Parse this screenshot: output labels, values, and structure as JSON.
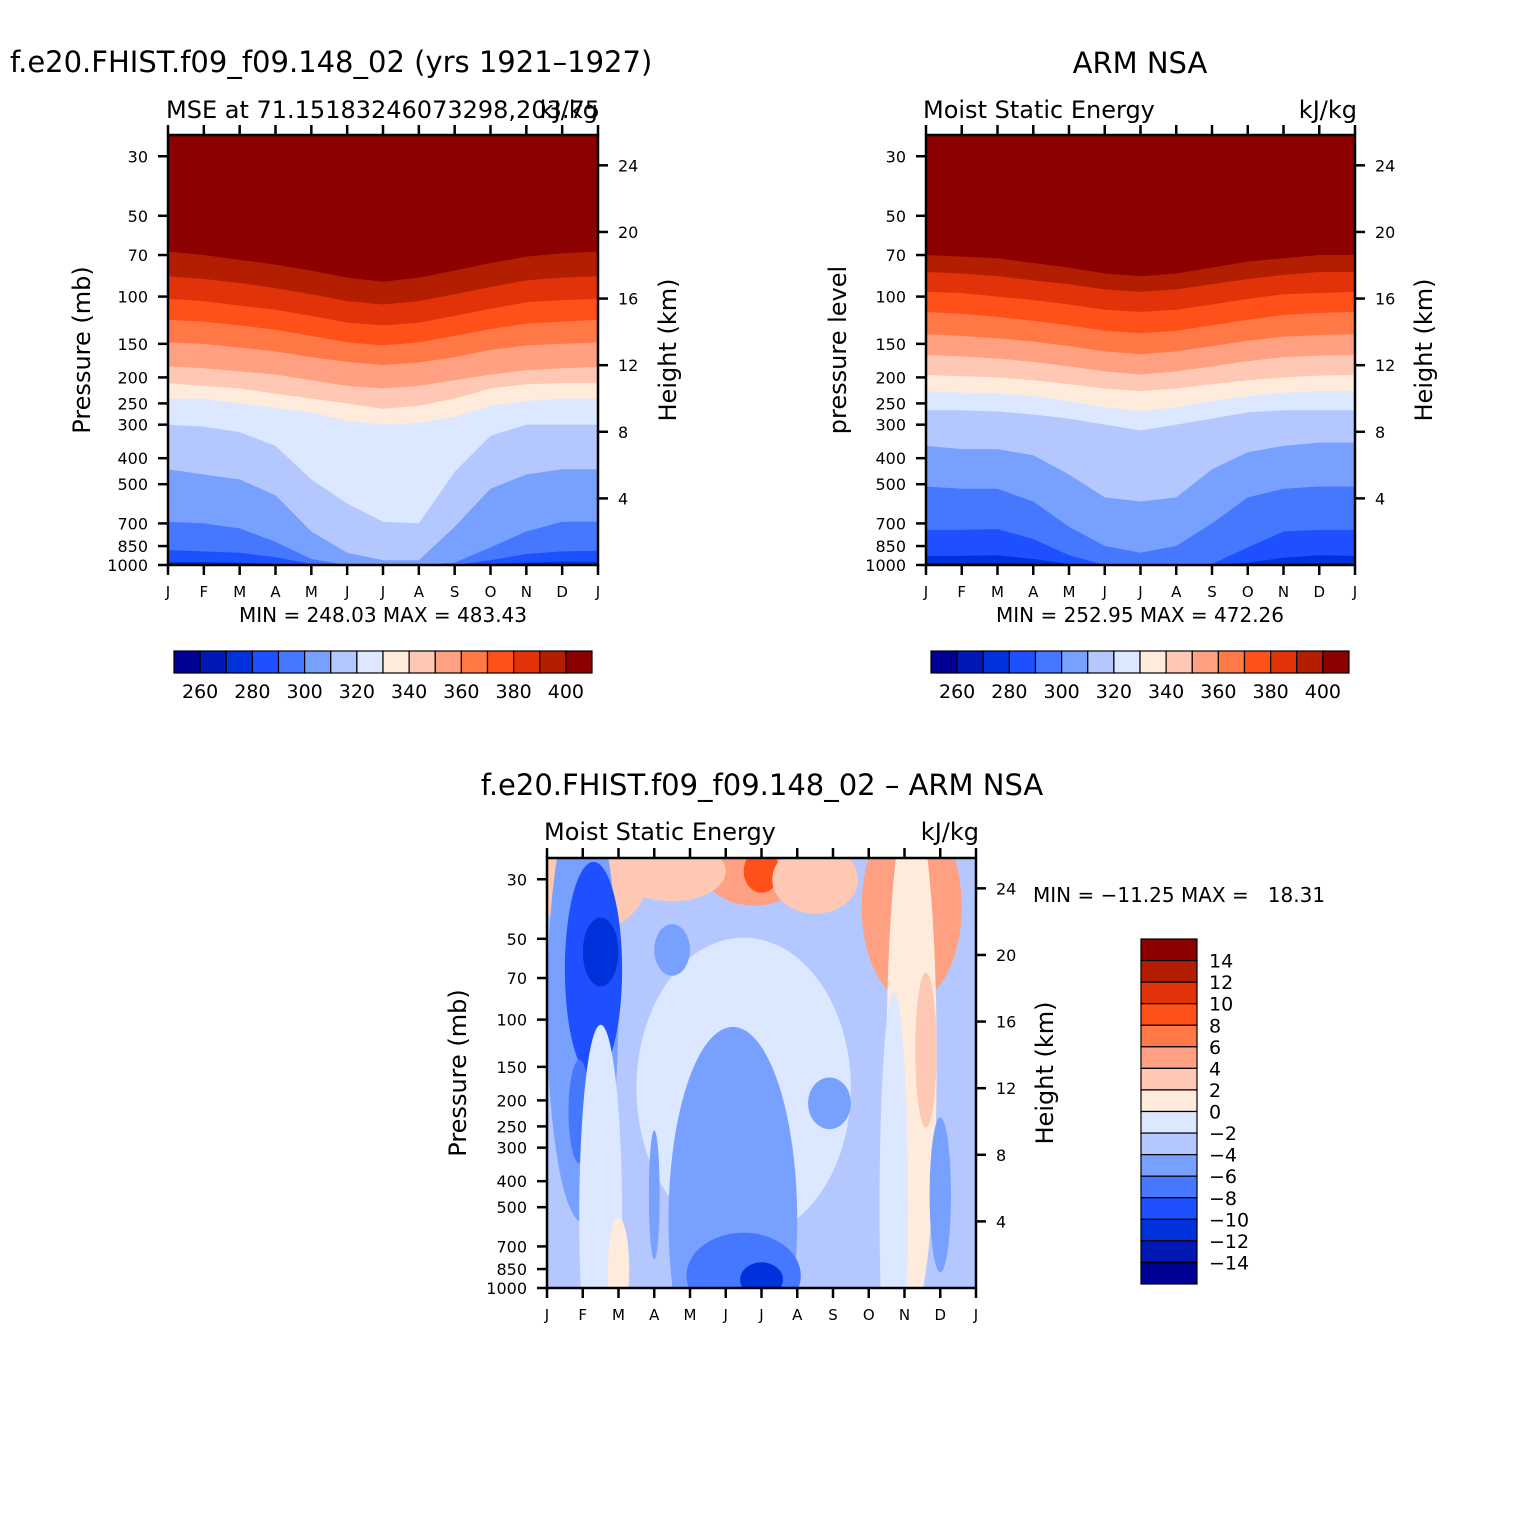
{
  "colors": {
    "mse_levels": [
      "#000096",
      "#0019b4",
      "#0032dc",
      "#1e50ff",
      "#4678ff",
      "#78a0ff",
      "#b4c8ff",
      "#dce8ff",
      "#ffebdc",
      "#ffc8b4",
      "#ffa082",
      "#ff7846",
      "#ff5019",
      "#e1320a",
      "#b41e00",
      "#8c0000"
    ],
    "diff_levels": [
      "#000096",
      "#0019b4",
      "#0032dc",
      "#1e50ff",
      "#4678ff",
      "#78a0ff",
      "#b4c8ff",
      "#dce8ff",
      "#ffebdc",
      "#ffc8b4",
      "#ffa082",
      "#ff7846",
      "#ff5019",
      "#e1320a",
      "#b41e00",
      "#8c0000"
    ]
  },
  "chart_data": [
    {
      "type": "heatmap",
      "panel": "model",
      "title": "f.e20.FHIST.f09_f09.148_02 (yrs 1921–1927)",
      "subtitle_left": "MSE at 71.15183246073298,203.75",
      "subtitle_right": "kJ/kg",
      "ylabel": "Pressure (mb)",
      "ylabel_right": "Height (km)",
      "x_ticks": [
        "J",
        "F",
        "M",
        "A",
        "M",
        "J",
        "J",
        "A",
        "S",
        "O",
        "N",
        "D",
        "J"
      ],
      "y_ticks": [
        "30",
        "50",
        "70",
        "100",
        "150",
        "200",
        "250",
        "300",
        "400",
        "500",
        "700",
        "850",
        "1000"
      ],
      "y_ticks_right": [
        "24",
        "20",
        "16",
        "12",
        "8",
        "4"
      ],
      "minmax": "MIN = 248.03 MAX = 483.43",
      "min": 248.03,
      "max": 483.43,
      "colorbar_labels": [
        "260",
        "280",
        "300",
        "320",
        "340",
        "360",
        "380",
        "400"
      ],
      "months": [
        0,
        1,
        2,
        3,
        4,
        5,
        6,
        7,
        8,
        9,
        10,
        11,
        12
      ],
      "boundary_pressures_mb": [
        [
          990,
          992,
          995,
          1000,
          1000,
          1000,
          1000,
          1000,
          1000,
          1000,
          1000,
          1000,
          1000
        ],
        [
          975,
          975,
          980,
          990,
          1000,
          1000,
          1000,
          1000,
          1000,
          990,
          980,
          970,
          972
        ],
        [
          880,
          890,
          900,
          935,
          990,
          1000,
          1000,
          1000,
          1000,
          960,
          910,
          890,
          885
        ],
        [
          690,
          700,
          730,
          820,
          950,
          1000,
          1000,
          1000,
          980,
          860,
          750,
          690,
          690
        ],
        [
          440,
          460,
          480,
          550,
          750,
          900,
          960,
          960,
          720,
          520,
          460,
          440,
          440
        ],
        [
          300,
          305,
          320,
          360,
          480,
          590,
          690,
          700,
          450,
          330,
          300,
          300,
          300
        ],
        [
          240,
          240,
          250,
          260,
          270,
          290,
          300,
          295,
          280,
          255,
          245,
          240,
          240
        ],
        [
          210,
          215,
          220,
          230,
          240,
          250,
          262,
          255,
          240,
          220,
          212,
          210,
          210
        ],
        [
          182,
          185,
          190,
          195,
          205,
          215,
          220,
          215,
          205,
          195,
          188,
          185,
          183
        ],
        [
          148,
          150,
          155,
          160,
          168,
          175,
          180,
          176,
          168,
          158,
          152,
          150,
          148
        ],
        [
          122,
          124,
          128,
          133,
          140,
          148,
          152,
          148,
          140,
          132,
          126,
          124,
          122
        ],
        [
          102,
          104,
          108,
          112,
          118,
          125,
          128,
          125,
          118,
          111,
          105,
          103,
          102
        ],
        [
          84,
          86,
          89,
          93,
          98,
          104,
          107,
          104,
          98,
          92,
          87,
          85,
          84
        ],
        [
          68,
          70,
          73,
          76,
          80,
          85,
          88,
          85,
          80,
          75,
          71,
          69,
          68
        ]
      ]
    },
    {
      "type": "heatmap",
      "panel": "observed",
      "title": "ARM NSA",
      "subtitle_left": "Moist Static Energy",
      "subtitle_right": "kJ/kg",
      "ylabel": "pressure level",
      "ylabel_right": "Height (km)",
      "x_ticks": [
        "J",
        "F",
        "M",
        "A",
        "M",
        "J",
        "J",
        "A",
        "S",
        "O",
        "N",
        "D",
        "J"
      ],
      "y_ticks": [
        "30",
        "50",
        "70",
        "100",
        "150",
        "200",
        "250",
        "300",
        "400",
        "500",
        "700",
        "850",
        "1000"
      ],
      "y_ticks_right": [
        "24",
        "20",
        "16",
        "12",
        "8",
        "4"
      ],
      "minmax": "MIN = 252.95 MAX = 472.26",
      "min": 252.95,
      "max": 472.26,
      "colorbar_labels": [
        "260",
        "280",
        "300",
        "320",
        "340",
        "360",
        "380",
        "400"
      ],
      "months": [
        0,
        1,
        2,
        3,
        4,
        5,
        6,
        7,
        8,
        9,
        10,
        11,
        12
      ],
      "boundary_pressures_mb": [
        [
          985,
          985,
          985,
          990,
          1000,
          1000,
          1000,
          1000,
          1000,
          1000,
          990,
          985,
          985
        ],
        [
          925,
          925,
          920,
          950,
          990,
          1000,
          1000,
          1000,
          1000,
          980,
          940,
          920,
          925
        ],
        [
          740,
          740,
          735,
          800,
          920,
          1000,
          1000,
          1000,
          990,
          860,
          750,
          740,
          740
        ],
        [
          510,
          520,
          520,
          580,
          720,
          850,
          900,
          850,
          700,
          560,
          520,
          510,
          510
        ],
        [
          360,
          370,
          370,
          390,
          460,
          560,
          580,
          560,
          440,
          380,
          360,
          350,
          350
        ],
        [
          265,
          265,
          268,
          275,
          285,
          300,
          315,
          300,
          285,
          270,
          265,
          265,
          265
        ],
        [
          225,
          228,
          230,
          235,
          245,
          258,
          268,
          258,
          245,
          235,
          228,
          225,
          225
        ],
        [
          196,
          198,
          200,
          205,
          212,
          220,
          225,
          220,
          212,
          205,
          200,
          197,
          196
        ],
        [
          165,
          167,
          170,
          175,
          182,
          190,
          195,
          190,
          182,
          174,
          168,
          166,
          165
        ],
        [
          138,
          140,
          143,
          147,
          153,
          160,
          164,
          160,
          153,
          146,
          141,
          139,
          138
        ],
        [
          114,
          116,
          119,
          123,
          128,
          134,
          137,
          134,
          128,
          122,
          117,
          115,
          114
        ],
        [
          96,
          97,
          100,
          103,
          107,
          112,
          114,
          112,
          107,
          102,
          98,
          97,
          96
        ],
        [
          81,
          82,
          84,
          87,
          90,
          94,
          96,
          94,
          90,
          86,
          83,
          81,
          81
        ],
        [
          70,
          71,
          72,
          75,
          78,
          82,
          84,
          82,
          78,
          74,
          72,
          70,
          70
        ]
      ]
    },
    {
      "type": "heatmap",
      "panel": "difference",
      "title": "f.e20.FHIST.f09_f09.148_02 – ARM NSA",
      "subtitle_left": "Moist Static Energy",
      "subtitle_right": "kJ/kg",
      "ylabel": "Pressure (mb)",
      "ylabel_right": "Height (km)",
      "x_ticks": [
        "J",
        "F",
        "M",
        "A",
        "M",
        "J",
        "J",
        "A",
        "S",
        "O",
        "N",
        "D",
        "J"
      ],
      "y_ticks": [
        "30",
        "50",
        "70",
        "100",
        "150",
        "200",
        "250",
        "300",
        "400",
        "500",
        "700",
        "850",
        "1000"
      ],
      "y_ticks_right": [
        "24",
        "20",
        "16",
        "12",
        "8",
        "4"
      ],
      "minmax": "MIN = −11.25 MAX =   18.31",
      "min": -11.25,
      "max": 18.31,
      "colorbar_labels": [
        "14",
        "12",
        "10",
        "8",
        "6",
        "4",
        "2",
        "0",
        "−2",
        "−4",
        "−6",
        "−8",
        "−10",
        "−12",
        "−14"
      ],
      "colorbar_values": [
        14,
        12,
        10,
        8,
        6,
        4,
        2,
        0,
        -2,
        -4,
        -6,
        -8,
        -10,
        -12,
        -14
      ],
      "background_value": -3,
      "blobs": [
        {
          "value": 3,
          "month": 1.2,
          "p": 30,
          "rx": 1.6,
          "ry": 0.12
        },
        {
          "value": 5,
          "month": 5.8,
          "p": 28,
          "rx": 1.4,
          "ry": 0.08
        },
        {
          "value": 9,
          "month": 6.0,
          "p": 28,
          "rx": 0.5,
          "ry": 0.05
        },
        {
          "value": 3,
          "month": 3.5,
          "p": 28,
          "rx": 1.5,
          "ry": 0.07
        },
        {
          "value": 3,
          "month": 7.5,
          "p": 30,
          "rx": 1.2,
          "ry": 0.08
        },
        {
          "value": 16,
          "month": 10.0,
          "p": 27,
          "rx": 0.7,
          "ry": 0.1
        },
        {
          "value": 10,
          "month": 10.0,
          "p": 32,
          "rx": 1.0,
          "ry": 0.16
        },
        {
          "value": 5,
          "month": 10.2,
          "p": 38,
          "rx": 1.4,
          "ry": 0.22
        },
        {
          "value": 1,
          "month": 10.2,
          "p": 140,
          "rx": 0.7,
          "ry": 0.6
        },
        {
          "value": 3,
          "month": 10.6,
          "p": 130,
          "rx": 0.3,
          "ry": 0.18
        },
        {
          "value": -6,
          "month": 1.0,
          "p": 90,
          "rx": 1.0,
          "ry": 0.5
        },
        {
          "value": -9,
          "month": 1.3,
          "p": 65,
          "rx": 0.8,
          "ry": 0.25
        },
        {
          "value": -12,
          "month": 1.5,
          "p": 56,
          "rx": 0.5,
          "ry": 0.08
        },
        {
          "value": -7,
          "month": 0.9,
          "p": 220,
          "rx": 0.3,
          "ry": 0.12
        },
        {
          "value": -1,
          "month": 5.5,
          "p": 180,
          "rx": 3.0,
          "ry": 0.35
        },
        {
          "value": -5,
          "month": 7.9,
          "p": 205,
          "rx": 0.6,
          "ry": 0.06
        },
        {
          "value": -5,
          "month": 5.2,
          "p": 560,
          "rx": 1.8,
          "ry": 0.45
        },
        {
          "value": -8,
          "month": 5.5,
          "p": 900,
          "rx": 1.6,
          "ry": 0.1
        },
        {
          "value": -11,
          "month": 6.0,
          "p": 930,
          "rx": 0.6,
          "ry": 0.04
        },
        {
          "value": -5,
          "month": 3.0,
          "p": 450,
          "rx": 0.15,
          "ry": 0.15
        },
        {
          "value": -5,
          "month": 11.0,
          "p": 450,
          "rx": 0.3,
          "ry": 0.18
        },
        {
          "value": -1,
          "month": 1.5,
          "p": 550,
          "rx": 0.6,
          "ry": 0.45
        },
        {
          "value": 1,
          "month": 2.0,
          "p": 850,
          "rx": 0.3,
          "ry": 0.12
        },
        {
          "value": -1,
          "month": 9.7,
          "p": 500,
          "rx": 0.4,
          "ry": 0.5
        },
        {
          "value": -5,
          "month": 3.5,
          "p": 55,
          "rx": 0.5,
          "ry": 0.06
        }
      ]
    }
  ]
}
